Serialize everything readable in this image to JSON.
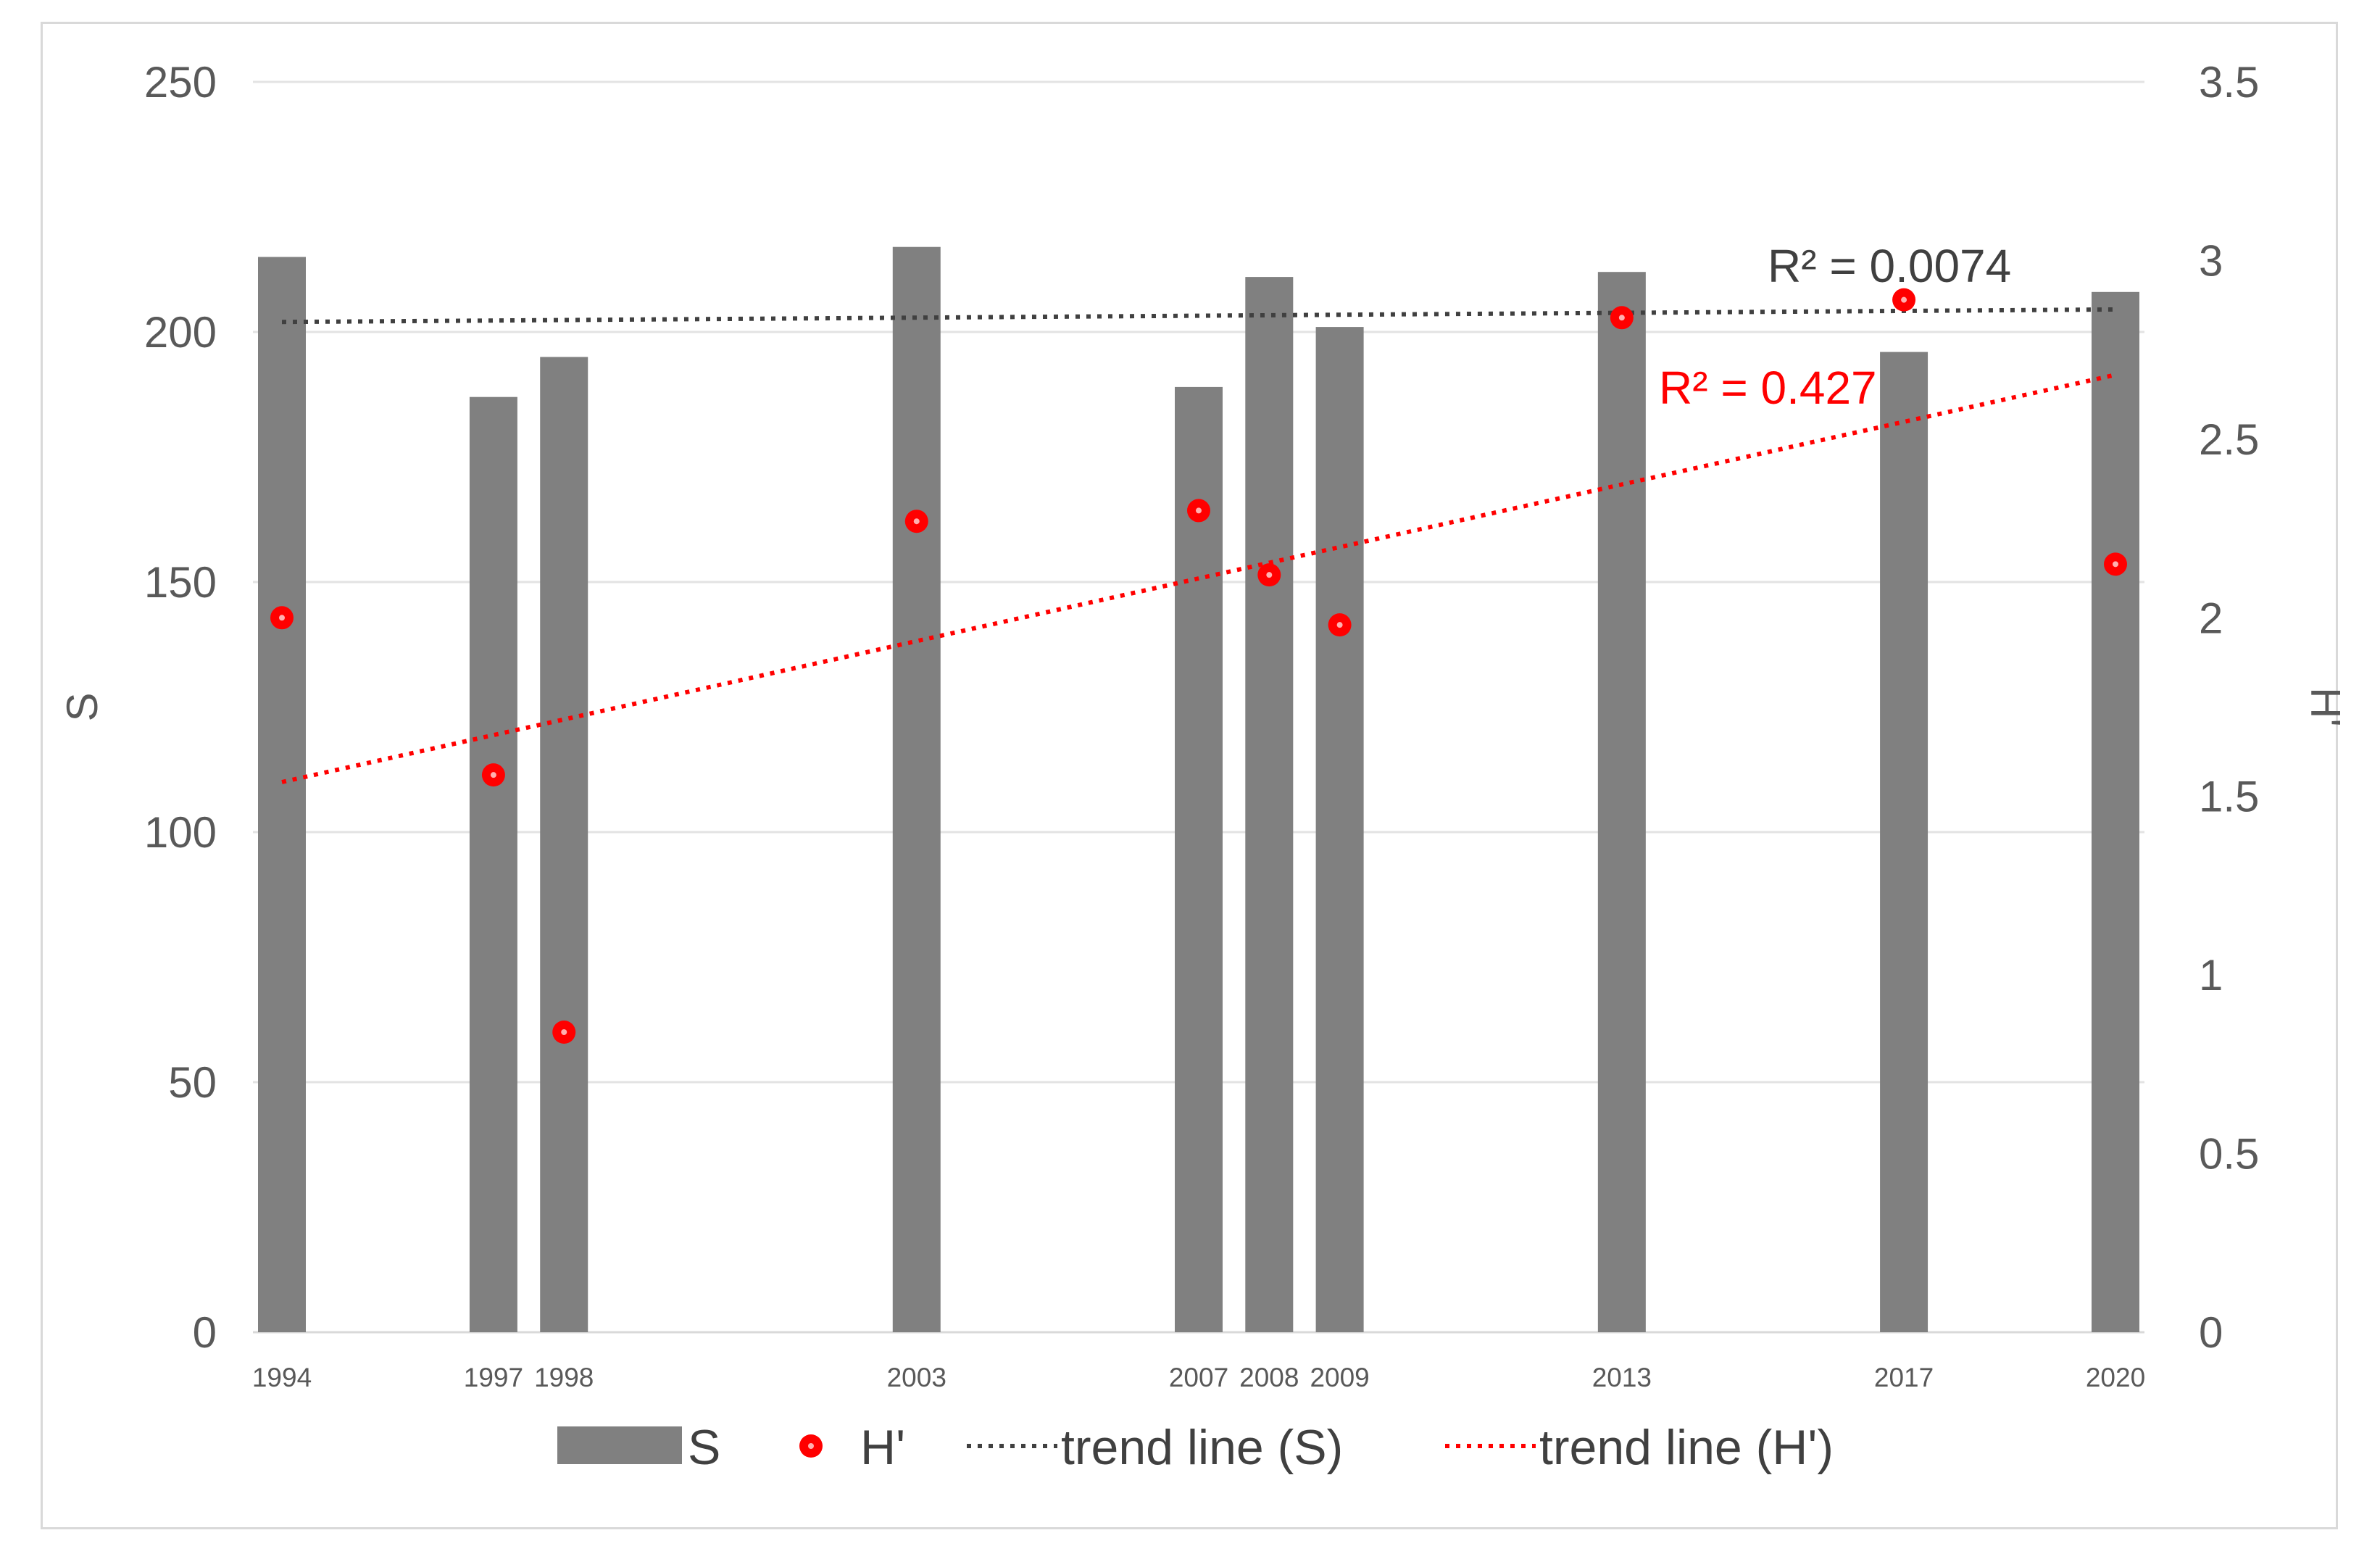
{
  "chart_data": {
    "type": "bar",
    "categories": [
      "1994",
      "1997",
      "1998",
      "2003",
      "2007",
      "2008",
      "2009",
      "2013",
      "2017",
      "2020"
    ],
    "years": [
      1994,
      1997,
      1998,
      2003,
      2007,
      2008,
      2009,
      2013,
      2017,
      2020
    ],
    "series": [
      {
        "name": "S",
        "type": "bar",
        "axis": "left",
        "color": "#808080",
        "values": [
          215,
          187,
          195,
          217,
          189,
          211,
          201,
          212,
          196,
          208
        ]
      },
      {
        "name": "H'",
        "type": "scatter",
        "axis": "right",
        "color": "#ff0000",
        "values": [
          2.0,
          1.56,
          0.84,
          2.27,
          2.3,
          2.12,
          1.98,
          2.84,
          2.89,
          2.15
        ]
      },
      {
        "name": "trend line (S)",
        "type": "trendline",
        "axis": "left",
        "color": "#404040",
        "start": 202,
        "end": 204.5,
        "r2_label": "R² = 0.0074"
      },
      {
        "name": "trend line (H')",
        "type": "trendline",
        "axis": "right",
        "color": "#ff0000",
        "start": 1.54,
        "end": 2.68,
        "r2_label": "R² = 0.427"
      }
    ],
    "left_axis": {
      "label": "S",
      "ylim": [
        0,
        250
      ],
      "ticks": [
        0,
        50,
        100,
        150,
        200,
        250
      ],
      "tick_labels": [
        "0",
        "50",
        "100",
        "150",
        "200",
        "250"
      ]
    },
    "right_axis": {
      "label": "H'",
      "ylim": [
        0,
        3.5
      ],
      "ticks": [
        0,
        0.5,
        1,
        1.5,
        2,
        2.5,
        3,
        3.5
      ],
      "tick_labels": [
        "0",
        "0.5",
        "1",
        "1.5",
        "2",
        "2.5",
        "3",
        "3.5"
      ]
    },
    "x_range": [
      1994,
      2020
    ],
    "grid": true,
    "legend": {
      "position": "bottom",
      "items": [
        "S",
        "H'",
        "trend line (S)",
        "trend line (H')"
      ]
    }
  }
}
